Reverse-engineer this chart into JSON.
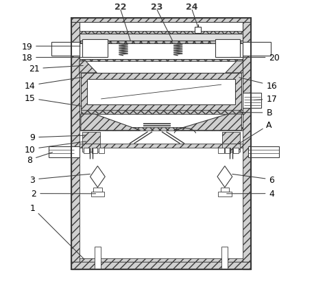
{
  "background": "#ffffff",
  "line_color": "#3a3a3a",
  "label_color": "#000000",
  "figsize": [
    4.58,
    4.1
  ],
  "dpi": 100,
  "OL": 0.195,
  "OR": 0.835,
  "OB": 0.04,
  "OT": 0.935,
  "wall": 0.028
}
